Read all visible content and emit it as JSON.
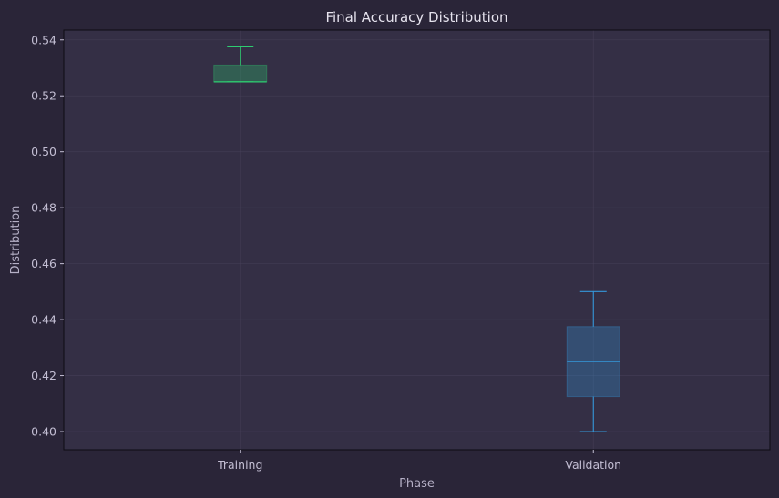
{
  "chart_data": {
    "type": "box",
    "title": "Final Accuracy Distribution",
    "xlabel": "Phase",
    "ylabel": "Distribution",
    "categories": [
      "Training",
      "Validation"
    ],
    "boxes": [
      {
        "name": "Training",
        "whisker_low": 0.525,
        "q1": 0.525,
        "median": 0.525,
        "q3": 0.531,
        "whisker_high": 0.5375,
        "color": "#2ecc71"
      },
      {
        "name": "Validation",
        "whisker_low": 0.4,
        "q1": 0.4125,
        "median": 0.425,
        "q3": 0.4375,
        "whisker_high": 0.45,
        "color": "#3498db"
      }
    ],
    "ylim": [
      0.3935,
      0.5435
    ],
    "yticks": [
      0.4,
      0.42,
      0.44,
      0.46,
      0.48,
      0.5,
      0.52,
      0.54
    ],
    "ytick_labels": [
      "0.40",
      "0.42",
      "0.44",
      "0.46",
      "0.48",
      "0.50",
      "0.52",
      "0.54"
    ],
    "grid": true,
    "colors": {
      "background": "#2a2538",
      "plot_background": "#342f45",
      "grid": "#4a445c",
      "axis": "#0d0b12"
    }
  }
}
